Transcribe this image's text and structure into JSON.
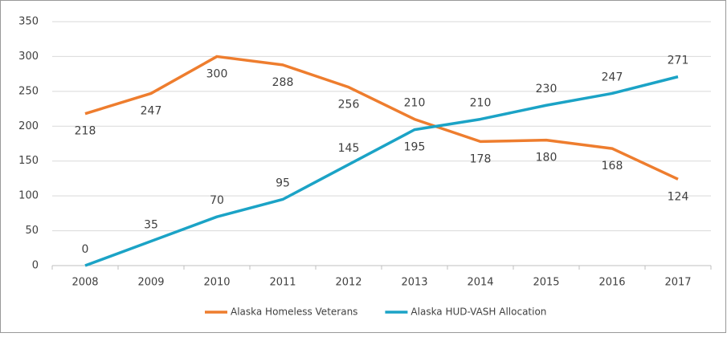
{
  "chart_data": {
    "type": "line",
    "categories": [
      "2008",
      "2009",
      "2010",
      "2011",
      "2012",
      "2013",
      "2014",
      "2015",
      "2016",
      "2017"
    ],
    "series": [
      {
        "name": "Alaska Homeless Veterans",
        "color": "#ee7d2e",
        "values": [
          218,
          247,
          300,
          288,
          256,
          210,
          178,
          180,
          168,
          124
        ]
      },
      {
        "name": "Alaska HUD-VASH Allocation",
        "color": "#1ba3c6",
        "values": [
          0,
          35,
          70,
          95,
          145,
          195,
          210,
          230,
          247,
          271
        ]
      }
    ],
    "ylim": [
      0,
      350
    ],
    "yticks": [
      0,
      50,
      100,
      150,
      200,
      250,
      300,
      350
    ],
    "grid": true,
    "legend": "bottom"
  }
}
